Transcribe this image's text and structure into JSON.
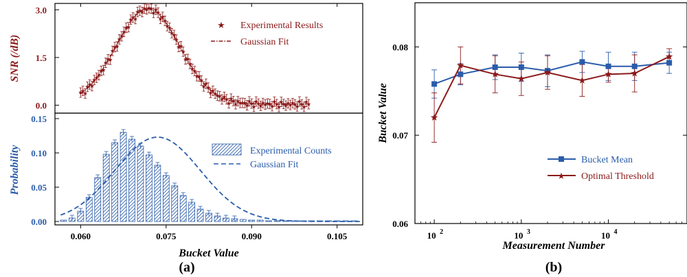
{
  "colors": {
    "snr": "#8b1a1a",
    "prob": "#2a5caa",
    "bucket_mean": "#2a5caa",
    "optimal_threshold": "#8b1a1a",
    "axis": "#000000"
  },
  "panels": {
    "a": {
      "label": "(a)"
    },
    "b": {
      "label": "(b)"
    }
  },
  "chart_data": [
    {
      "type": "scatter",
      "panel": "a-top",
      "title": "",
      "xlabel": "Bucket Value",
      "ylabel": "SNR (/dB)",
      "xlim": [
        0.0555,
        0.1095
      ],
      "ylim": [
        -0.25,
        3.2
      ],
      "x_ticks": [
        0.06,
        0.075,
        0.09,
        0.105
      ],
      "x_tick_labels": [
        "0.060",
        "0.075",
        "0.090",
        "0.105"
      ],
      "y_ticks": [
        0.0,
        1.5,
        3.0
      ],
      "y_tick_labels": [
        "0.0",
        "1.5",
        "3.0"
      ],
      "legend": [
        "Experimental Results",
        "Gaussian Fit"
      ],
      "legend_position": "top-right",
      "gaussian_fit": {
        "amplitude": 3.0,
        "mean": 0.0718,
        "sigma": 0.0056,
        "offset": 0.03
      },
      "series": [
        {
          "name": "Experimental Results",
          "x_start": 0.06,
          "x_end": 0.1,
          "x_step": 0.0004,
          "error_bar": 0.15
        },
        {
          "name": "Gaussian Fit"
        }
      ]
    },
    {
      "type": "bar",
      "panel": "a-bottom",
      "title": "",
      "xlabel": "Bucket Value",
      "ylabel": "Probability",
      "xlim": [
        0.0555,
        0.1095
      ],
      "ylim": [
        -0.005,
        0.158
      ],
      "y_ticks": [
        0.0,
        0.05,
        0.1,
        0.15
      ],
      "y_tick_labels": [
        "0.00",
        "0.05",
        "0.10",
        "0.15"
      ],
      "legend": [
        "Experimental Counts",
        "Gaussian Fit"
      ],
      "legend_position": "top-right",
      "bin_width": 0.0015,
      "bin_centers": [
        0.057,
        0.0585,
        0.06,
        0.0615,
        0.063,
        0.0645,
        0.066,
        0.0675,
        0.069,
        0.0705,
        0.072,
        0.0735,
        0.075,
        0.0765,
        0.078,
        0.0795,
        0.081,
        0.0825,
        0.084,
        0.0855,
        0.087,
        0.0885,
        0.09,
        0.0915,
        0.093,
        0.0945,
        0.096,
        0.0975,
        0.099,
        0.1005,
        0.102,
        0.1035,
        0.105,
        0.1065,
        0.108
      ],
      "values": [
        0.002,
        0.005,
        0.015,
        0.035,
        0.064,
        0.098,
        0.115,
        0.13,
        0.12,
        0.11,
        0.097,
        0.082,
        0.067,
        0.052,
        0.038,
        0.028,
        0.018,
        0.012,
        0.008,
        0.005,
        0.004,
        0.003,
        0.002,
        0.002,
        0.001,
        0.001,
        0.001,
        0.001,
        0.001,
        0.001,
        0.001,
        0.001,
        0.001,
        0.001,
        0.001
      ],
      "error_bar": 0.004,
      "gaussian_fit": {
        "amplitude": 0.123,
        "mean": 0.0735,
        "sigma": 0.0075
      }
    },
    {
      "type": "line",
      "panel": "b",
      "title": "",
      "xlabel": "Measurement Number",
      "ylabel": "Bucket Value",
      "x_scale": "log",
      "xlim": [
        60,
        80000
      ],
      "ylim": [
        0.06,
        0.085
      ],
      "x_ticks": [
        100,
        1000,
        10000
      ],
      "x_tick_labels": [
        {
          "base": "10",
          "exp": "2"
        },
        {
          "base": "10",
          "exp": "3"
        },
        {
          "base": "10",
          "exp": "4"
        }
      ],
      "y_ticks": [
        0.06,
        0.07,
        0.08
      ],
      "y_tick_labels": [
        "0.06",
        "0.07",
        "0.08"
      ],
      "legend": [
        "Bucket Mean",
        "Optimal Threshold"
      ],
      "legend_position": "lower-right",
      "x": [
        100,
        200,
        500,
        1000,
        2000,
        5000,
        10000,
        20000,
        50000
      ],
      "series": [
        {
          "name": "Bucket Mean",
          "values": [
            0.0758,
            0.0769,
            0.0777,
            0.0777,
            0.0773,
            0.0783,
            0.0778,
            0.0778,
            0.0782
          ],
          "errors": [
            0.0016,
            0.0012,
            0.0014,
            0.0016,
            0.0018,
            0.0012,
            0.0016,
            0.0016,
            0.0012
          ]
        },
        {
          "name": "Optimal Threshold",
          "values": [
            0.072,
            0.0779,
            0.0769,
            0.0764,
            0.0771,
            0.0762,
            0.0769,
            0.077,
            0.0789
          ],
          "errors": [
            0.0028,
            0.0021,
            0.0021,
            0.0019,
            0.0019,
            0.0018,
            0.0009,
            0.0021,
            0.0009
          ]
        }
      ]
    }
  ]
}
